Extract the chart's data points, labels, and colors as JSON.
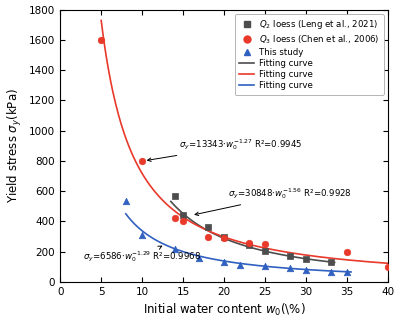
{
  "title": "",
  "xlabel": "Initial water content $w_0$(\\%)",
  "ylabel": "Yield stress $\\sigma_y$(kPa)",
  "xlim": [
    0,
    40
  ],
  "ylim": [
    0,
    1800
  ],
  "xticks": [
    0,
    5,
    10,
    15,
    20,
    25,
    30,
    35,
    40
  ],
  "yticks": [
    0,
    200,
    400,
    600,
    800,
    1000,
    1200,
    1400,
    1600,
    1800
  ],
  "Q2_x": [
    14,
    15,
    18,
    20,
    23,
    25,
    28,
    30,
    33
  ],
  "Q2_y": [
    570,
    440,
    360,
    300,
    245,
    205,
    170,
    150,
    130
  ],
  "Q2_color": "#4d4d4d",
  "Q2_marker": "s",
  "Q3_x": [
    5,
    10,
    14,
    15,
    18,
    20,
    23,
    25,
    35,
    40
  ],
  "Q3_y": [
    1600,
    800,
    420,
    400,
    300,
    290,
    255,
    250,
    200,
    100
  ],
  "Q3_color": "#e8392a",
  "Q3_marker": "o",
  "This_x": [
    8,
    10,
    14,
    17,
    20,
    22,
    25,
    28,
    30,
    33,
    35
  ],
  "This_y": [
    535,
    310,
    215,
    155,
    130,
    115,
    105,
    90,
    80,
    65,
    65
  ],
  "This_color": "#3060c0",
  "This_marker": "^",
  "fit_Q2_a": 30848,
  "fit_Q2_b": -1.56,
  "fit_Q2_xmin": 13.5,
  "fit_Q2_xmax": 33.5,
  "fit_Q2_color": "#4d4d4d",
  "fit_Q3_a": 13343,
  "fit_Q3_b": -1.27,
  "fit_Q3_xmin": 5.0,
  "fit_Q3_xmax": 40.0,
  "fit_Q3_color": "#e8392a",
  "fit_This_a": 6586,
  "fit_This_b": -1.29,
  "fit_This_xmin": 8.0,
  "fit_This_xmax": 35.5,
  "fit_This_color": "#3060c0",
  "legend_labels": [
    "$Q_2$ loess (Leng et al., 2021)",
    "$Q_3$ loess (Chen et al., 2006)",
    "This study",
    "Fitting curve",
    "Fitting curve",
    "Fitting curve"
  ],
  "background_color": "#ffffff",
  "figsize": [
    4.0,
    3.24
  ],
  "dpi": 100
}
